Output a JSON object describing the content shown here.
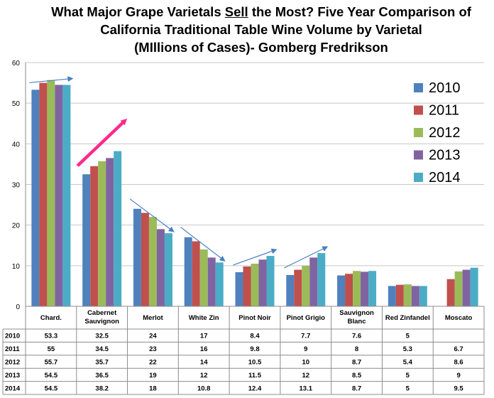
{
  "title": {
    "line1_pre": "What Major Grape Varietals ",
    "line1_emph": "Sell",
    "line1_post": " the Most?  Five Year Comparison of",
    "line2": "California Traditional Table Wine Volume by Varietal",
    "line3": "(MIllions of Cases)- Gomberg Fredrikson"
  },
  "colors": {
    "2010": "#4f81bd",
    "2011": "#c0504d",
    "2012": "#9bbb59",
    "2013": "#8064a2",
    "2014": "#4bacc6",
    "trend_arrow": "#4a7fbf",
    "highlight_arrow": "#ff2a8a"
  },
  "chart_data": {
    "type": "bar",
    "title": "What Major Grape Varietals Sell the Most?  Five Year Comparison of California Traditional Table Wine Volume by Varietal (MIllions of Cases)- Gomberg Fredrikson",
    "categories": [
      [
        "Chard."
      ],
      [
        "Cabernet",
        "Sauvignon"
      ],
      [
        "Merlot"
      ],
      [
        "White Zin"
      ],
      [
        "Pinot Noir"
      ],
      [
        "Pinot Grigio"
      ],
      [
        "Sauvignon",
        "Blanc"
      ],
      [
        "Red Zinfandel"
      ],
      [
        "Moscato"
      ]
    ],
    "series": [
      {
        "name": "2010",
        "values": [
          53.3,
          32.5,
          24,
          17,
          8.4,
          7.7,
          7.6,
          5,
          null
        ]
      },
      {
        "name": "2011",
        "values": [
          55,
          34.5,
          23,
          16,
          9.8,
          9,
          8,
          5.3,
          6.7
        ]
      },
      {
        "name": "2012",
        "values": [
          55.7,
          35.7,
          22,
          14,
          10.5,
          10,
          8.7,
          5.4,
          8.6
        ]
      },
      {
        "name": "2013",
        "values": [
          54.5,
          36.5,
          19,
          12,
          11.5,
          12,
          8.5,
          5,
          9
        ]
      },
      {
        "name": "2014",
        "values": [
          54.5,
          38.2,
          18,
          10.8,
          12.4,
          13.1,
          8.7,
          5,
          9.5
        ]
      }
    ],
    "ylim": [
      0,
      60
    ],
    "yticks": [
      0,
      10,
      20,
      30,
      40,
      50,
      60
    ],
    "grid": true,
    "legend": "right",
    "data_table": true,
    "trend_arrows": [
      {
        "category": "Chard.",
        "direction": "up",
        "style": "thin"
      },
      {
        "category": "Cabernet Sauvignon",
        "direction": "up",
        "style": "bold-highlight"
      },
      {
        "category": "Merlot",
        "direction": "down",
        "style": "thin"
      },
      {
        "category": "White Zin",
        "direction": "down",
        "style": "thin"
      },
      {
        "category": "Pinot Noir",
        "direction": "up",
        "style": "thin"
      },
      {
        "category": "Pinot Grigio",
        "direction": "up",
        "style": "thin"
      }
    ]
  }
}
